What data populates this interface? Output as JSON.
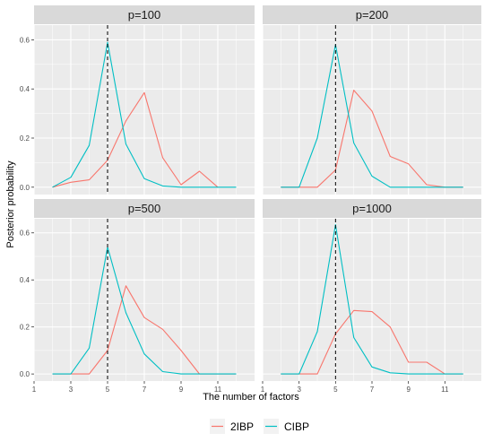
{
  "chart_data": {
    "type": "line",
    "xlabel": "The number of factors",
    "ylabel": "Posterior probability",
    "xlim": [
      1,
      13
    ],
    "ylim": [
      -0.03,
      0.66
    ],
    "x_ticks": [
      1,
      3,
      5,
      7,
      9,
      11
    ],
    "y_ticks": [
      0.0,
      0.2,
      0.4,
      0.6
    ],
    "y_tick_labels": [
      "0.0",
      "0.2",
      "0.4",
      "0.6"
    ],
    "reference_line": {
      "x": 5,
      "style": "dashed",
      "color": "#000000"
    },
    "legend": {
      "position": "bottom",
      "entries": [
        "2IBP",
        "CIBP"
      ]
    },
    "colors": {
      "2IBP": "#F8766D",
      "CIBP": "#00BFC4",
      "panel_bg": "#EBEBEB",
      "strip_bg": "#D9D9D9",
      "grid": "#FFFFFF"
    },
    "facets": [
      {
        "title": "p=100",
        "series": [
          {
            "name": "2IBP",
            "x": [
              2,
              3,
              4,
              5,
              6,
              7,
              8,
              9,
              10,
              11
            ],
            "y": [
              0.0,
              0.02,
              0.03,
              0.11,
              0.27,
              0.385,
              0.12,
              0.01,
              0.065,
              0.0
            ]
          },
          {
            "name": "CIBP",
            "x": [
              2,
              3,
              4,
              5,
              6,
              7,
              8,
              9,
              10,
              11,
              12
            ],
            "y": [
              0.0,
              0.04,
              0.17,
              0.59,
              0.175,
              0.035,
              0.005,
              0.0,
              0.0,
              0.0,
              0.0
            ]
          }
        ]
      },
      {
        "title": "p=200",
        "series": [
          {
            "name": "2IBP",
            "x": [
              2,
              3,
              4,
              5,
              6,
              7,
              8,
              9,
              10,
              11,
              12
            ],
            "y": [
              0.0,
              0.0,
              0.0,
              0.07,
              0.395,
              0.31,
              0.125,
              0.095,
              0.01,
              0.0,
              0.0
            ]
          },
          {
            "name": "CIBP",
            "x": [
              2,
              3,
              4,
              5,
              6,
              7,
              8,
              9,
              10,
              11,
              12
            ],
            "y": [
              0.0,
              0.0,
              0.2,
              0.58,
              0.18,
              0.045,
              0.0,
              0.0,
              0.0,
              0.0,
              0.0
            ]
          }
        ]
      },
      {
        "title": "p=500",
        "series": [
          {
            "name": "2IBP",
            "x": [
              2,
              3,
              4,
              5,
              6,
              7,
              8,
              9,
              10,
              11,
              12
            ],
            "y": [
              0.0,
              0.0,
              0.0,
              0.1,
              0.375,
              0.24,
              0.19,
              0.1,
              0.0,
              0.0,
              0.0
            ]
          },
          {
            "name": "CIBP",
            "x": [
              2,
              3,
              4,
              5,
              6,
              7,
              8,
              9,
              10,
              11,
              12
            ],
            "y": [
              0.0,
              0.0,
              0.11,
              0.54,
              0.26,
              0.085,
              0.01,
              0.0,
              0.0,
              0.0,
              0.0
            ]
          }
        ]
      },
      {
        "title": "p=1000",
        "series": [
          {
            "name": "2IBP",
            "x": [
              2,
              3,
              4,
              5,
              6,
              7,
              8,
              9,
              10,
              11,
              12
            ],
            "y": [
              0.0,
              0.0,
              0.0,
              0.17,
              0.27,
              0.265,
              0.2,
              0.05,
              0.05,
              0.0,
              0.0
            ]
          },
          {
            "name": "CIBP",
            "x": [
              2,
              3,
              4,
              5,
              6,
              7,
              8,
              9,
              10,
              11,
              12
            ],
            "y": [
              0.0,
              0.0,
              0.18,
              0.635,
              0.155,
              0.03,
              0.005,
              0.0,
              0.0,
              0.0,
              0.0
            ]
          }
        ]
      }
    ]
  }
}
